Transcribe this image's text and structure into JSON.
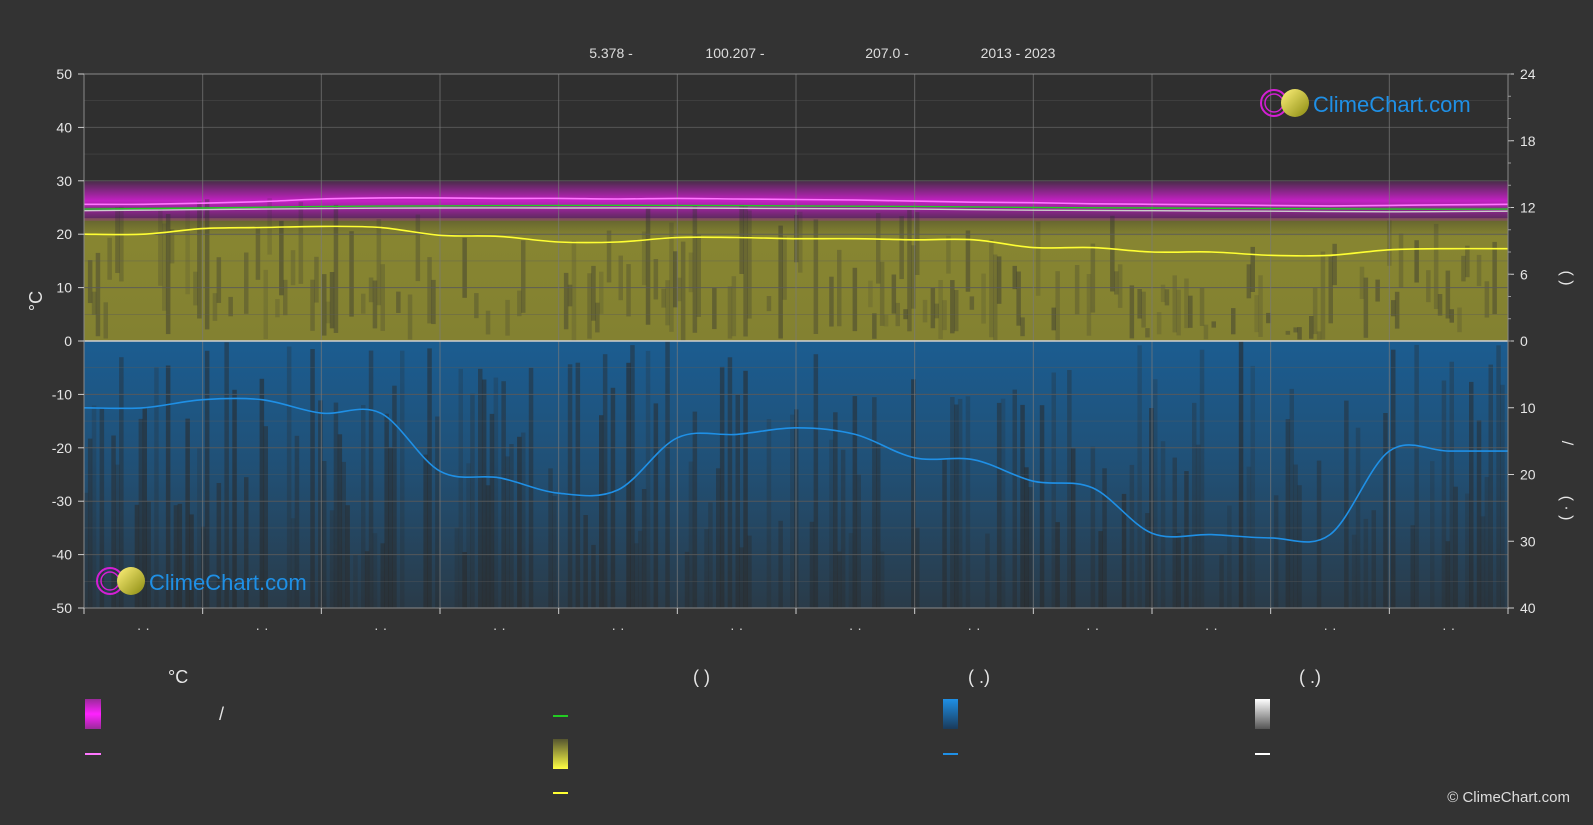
{
  "header": {
    "lat": "5.378 -",
    "lon": "100.207 -",
    "elev": "207.0 -",
    "years": "2013 - 2023"
  },
  "brand": {
    "name": "ClimeChart.com",
    "copyright": "© ClimeChart.com"
  },
  "legend": {
    "temp_unit": "°C",
    "slash_label": "/",
    "paren_sun": "(            )",
    "paren_rain": "(    .)",
    "paren_snow": "(    .)"
  },
  "right_axis_labels": {
    "sun_paren": "(     )",
    "rain_paren": "(   ·   )",
    "rain_slash": "/"
  },
  "colors": {
    "background": "#333333",
    "grid": "#5a5a5a",
    "temp_band": "#d41fd4",
    "max_line": "#ff77ff",
    "mean_line": "#22cc22",
    "min_line": "#cccccc",
    "sun_band": "#8c8a31",
    "sun_line": "#ffff33",
    "rain_band": "#1a5f96",
    "rain_line": "#1f90e6",
    "snow_line": "#ffffff",
    "brand_blue": "#1f90e6"
  },
  "chart_data": {
    "type": "line",
    "categories": [
      "",
      "",
      "",
      "",
      "",
      "",
      "",
      "",
      "",
      "",
      "",
      ""
    ],
    "tick_labels": [
      "· ·",
      "· ·",
      "· ·",
      "· ·",
      "· ·",
      "· ·",
      "· ·",
      "· ·",
      "· ·",
      "· ·",
      "· ·",
      "· ·"
    ],
    "y_left": {
      "label": "°C",
      "range": [
        -50,
        50
      ],
      "ticks": [
        50,
        40,
        30,
        20,
        10,
        0,
        -10,
        -20,
        -30,
        -40,
        -50
      ]
    },
    "y_right_top": {
      "range": [
        0,
        24
      ],
      "ticks": [
        24,
        18,
        12,
        6,
        0
      ]
    },
    "y_right_bottom": {
      "range": [
        0,
        40
      ],
      "ticks": [
        10,
        20,
        30,
        40
      ]
    },
    "series": [
      {
        "key": "max_temp",
        "unit": "°C",
        "x": [
          0,
          0.5,
          1,
          1.5,
          2,
          2.5,
          3,
          3.5,
          4,
          4.5,
          5,
          5.5,
          6,
          6.5,
          7,
          7.5,
          8,
          8.5,
          9,
          9.5,
          10,
          10.5,
          11,
          11.5,
          12
        ],
        "values": [
          25.6,
          25.6,
          25.8,
          26.1,
          26.6,
          26.8,
          26.8,
          26.7,
          26.7,
          26.6,
          26.7,
          26.6,
          26.5,
          26.4,
          26.2,
          26.0,
          25.9,
          25.7,
          25.6,
          25.5,
          25.4,
          25.3,
          25.4,
          25.5,
          25.6
        ]
      },
      {
        "key": "mean_temp",
        "unit": "°C",
        "x": [
          0,
          1,
          2,
          3,
          4,
          5,
          6,
          7,
          8,
          9,
          10,
          11,
          12
        ],
        "values": [
          24.7,
          24.9,
          25.2,
          25.3,
          25.4,
          25.4,
          25.3,
          25.2,
          25.0,
          24.9,
          24.8,
          24.7,
          24.7
        ]
      },
      {
        "key": "min_temp",
        "unit": "°C",
        "x": [
          0,
          1,
          2,
          3,
          4,
          5,
          6,
          7,
          8,
          9,
          10,
          11,
          12
        ],
        "values": [
          24.4,
          24.6,
          24.8,
          24.9,
          24.9,
          24.9,
          24.8,
          24.7,
          24.5,
          24.4,
          24.3,
          24.2,
          24.3
        ]
      },
      {
        "key": "sunshine_hours",
        "unit": "h",
        "axis": "right_top",
        "x": [
          0,
          0.5,
          1,
          1.5,
          2,
          2.5,
          3,
          3.5,
          4,
          4.5,
          5,
          5.5,
          6,
          6.5,
          7,
          7.5,
          8,
          8.5,
          9,
          9.5,
          10,
          10.5,
          11,
          11.5,
          12
        ],
        "values": [
          9.6,
          9.6,
          10.1,
          10.2,
          10.3,
          10.2,
          9.5,
          9.4,
          8.9,
          8.9,
          9.3,
          9.3,
          9.2,
          9.2,
          9.1,
          9.1,
          8.4,
          8.4,
          8.0,
          8.0,
          7.7,
          7.7,
          8.2,
          8.3,
          8.3
        ]
      },
      {
        "key": "precipitation",
        "unit": "mm",
        "axis": "right_bottom",
        "x": [
          0,
          0.5,
          1,
          1.5,
          2,
          2.5,
          3,
          3.5,
          4,
          4.5,
          5,
          5.5,
          6,
          6.5,
          7,
          7.5,
          8,
          8.5,
          9,
          9.5,
          10,
          10.5,
          11,
          11.5,
          12
        ],
        "values": [
          10.0,
          10.0,
          8.8,
          8.8,
          10.8,
          10.8,
          19.5,
          20.5,
          22.8,
          22.3,
          14.5,
          14.0,
          13.0,
          14.0,
          17.5,
          17.8,
          21.0,
          22.0,
          28.8,
          29.0,
          29.5,
          29.0,
          16.5,
          16.5,
          16.5
        ]
      }
    ]
  }
}
